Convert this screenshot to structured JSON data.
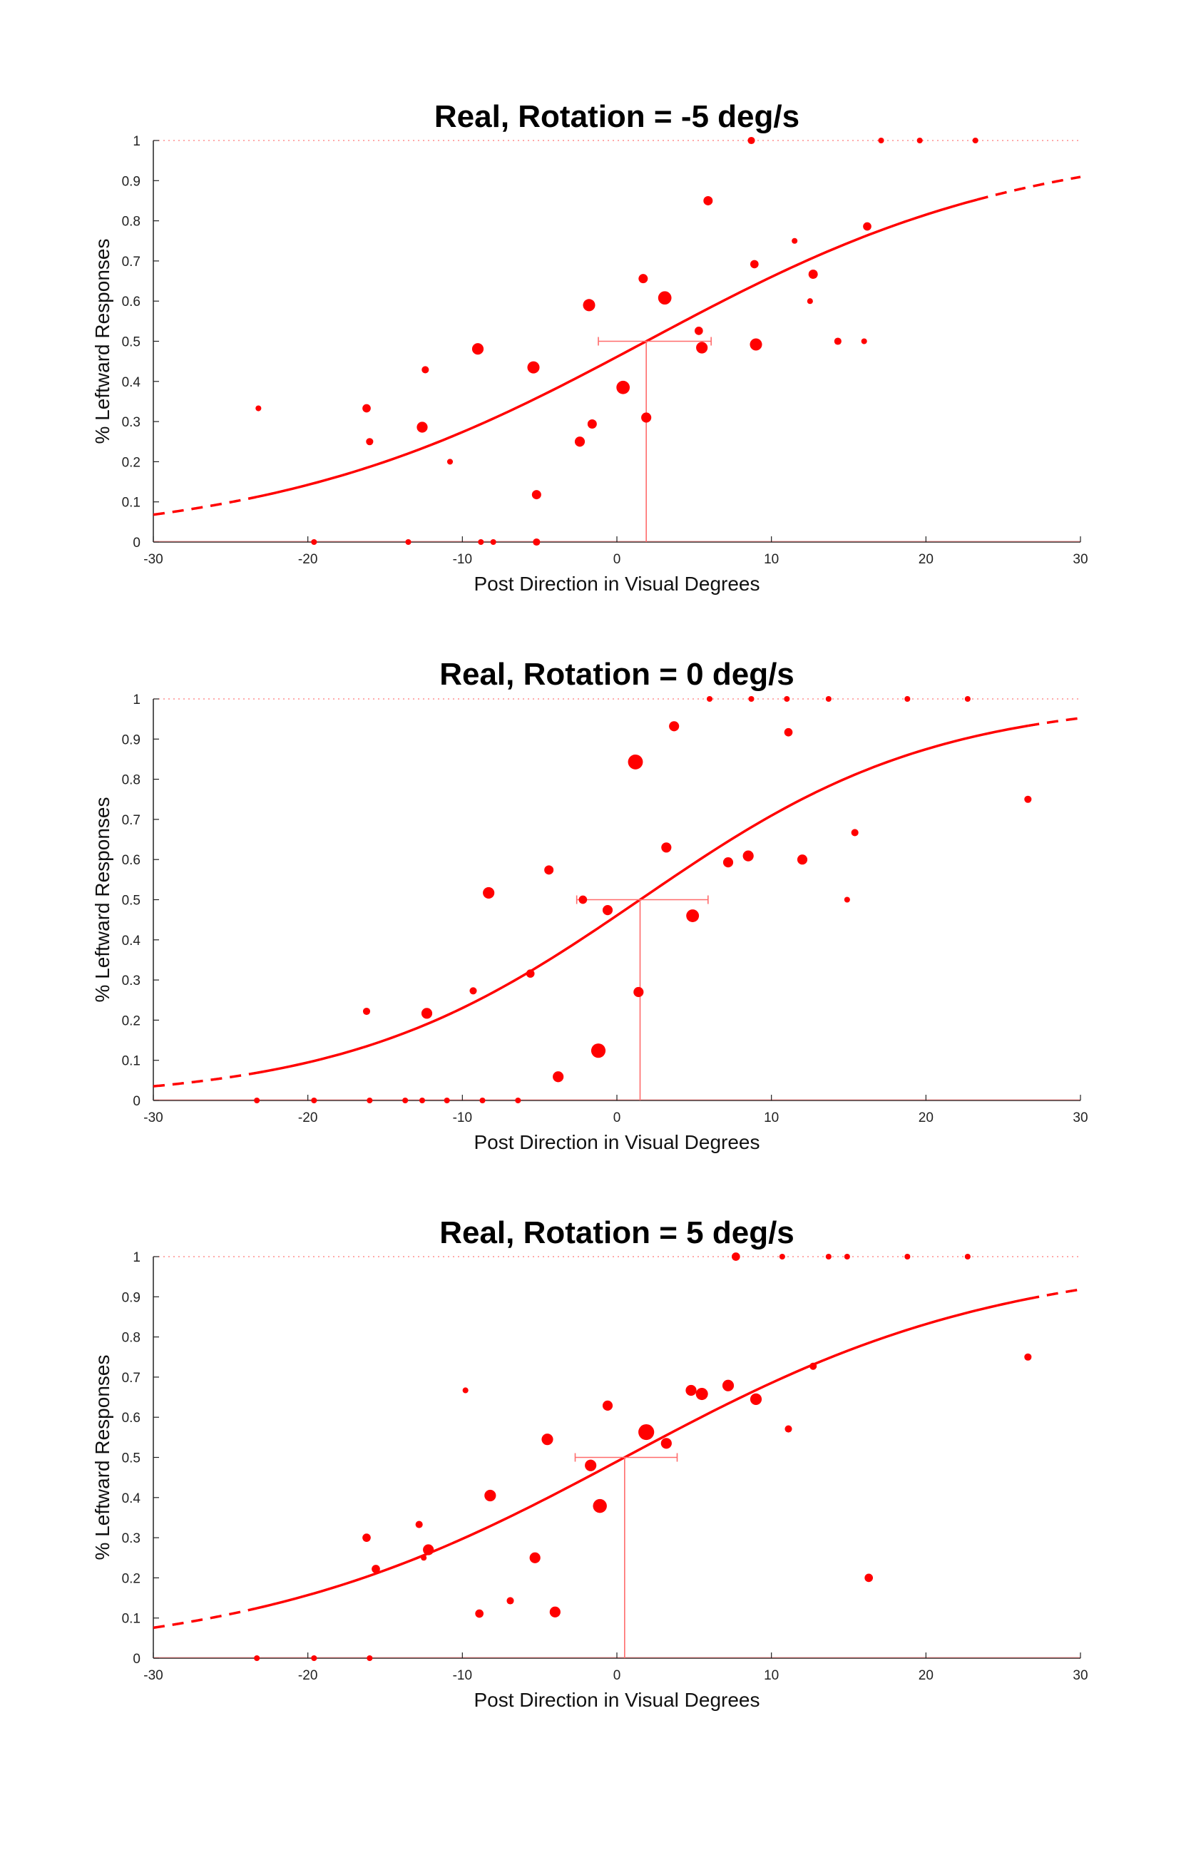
{
  "chart_data": [
    {
      "type": "scatter",
      "title": "Real, Rotation = -5 deg/s",
      "xlabel": "Post Direction in Visual Degrees",
      "ylabel": "% Leftward Responses",
      "xlim": [
        -30,
        30
      ],
      "ylim": [
        0,
        1
      ],
      "x_ticks": [
        -30,
        -20,
        -10,
        0,
        10,
        20,
        30
      ],
      "y_ticks": [
        0,
        0.1,
        0.2,
        0.3,
        0.4,
        0.5,
        0.6,
        0.7,
        0.8,
        0.9,
        1
      ],
      "x_tick_labels": [
        "-30",
        "-20",
        "-10",
        "0",
        "10",
        "20",
        "30"
      ],
      "y_tick_labels": [
        "0",
        "0.1",
        "0.2",
        "0.3",
        "0.4",
        "0.5",
        "0.6",
        "0.7",
        "0.8",
        "0.9",
        "1"
      ],
      "color": "#ff0000",
      "fit": {
        "pse": 1.9,
        "slope": 0.082,
        "solid_range": [
          -23.3,
          23.3
        ],
        "pse_ci": [
          -1.2,
          6.1
        ]
      },
      "points": [
        {
          "x": -23.2,
          "y": 0.333,
          "n": 1
        },
        {
          "x": -19.6,
          "y": 0,
          "n": 1
        },
        {
          "x": -16.2,
          "y": 0.333,
          "n": 3
        },
        {
          "x": -16.0,
          "y": 0.25,
          "n": 2
        },
        {
          "x": -13.5,
          "y": 0,
          "n": 1
        },
        {
          "x": -12.6,
          "y": 0.286,
          "n": 6
        },
        {
          "x": -12.4,
          "y": 0.429,
          "n": 2
        },
        {
          "x": -10.8,
          "y": 0.2,
          "n": 1
        },
        {
          "x": -9.0,
          "y": 0.481,
          "n": 7
        },
        {
          "x": -8.8,
          "y": 0,
          "n": 1
        },
        {
          "x": -8.0,
          "y": 0,
          "n": 1
        },
        {
          "x": -5.4,
          "y": 0.435,
          "n": 8
        },
        {
          "x": -5.2,
          "y": 0.118,
          "n": 4
        },
        {
          "x": -5.2,
          "y": 0,
          "n": 2
        },
        {
          "x": -2.4,
          "y": 0.25,
          "n": 5
        },
        {
          "x": -1.8,
          "y": 0.59,
          "n": 8
        },
        {
          "x": -1.6,
          "y": 0.294,
          "n": 4
        },
        {
          "x": 0.4,
          "y": 0.385,
          "n": 10
        },
        {
          "x": 1.7,
          "y": 0.656,
          "n": 4
        },
        {
          "x": 1.9,
          "y": 0.31,
          "n": 5
        },
        {
          "x": 3.1,
          "y": 0.608,
          "n": 10
        },
        {
          "x": 5.3,
          "y": 0.526,
          "n": 3
        },
        {
          "x": 5.5,
          "y": 0.484,
          "n": 7
        },
        {
          "x": 5.9,
          "y": 0.85,
          "n": 4
        },
        {
          "x": 8.7,
          "y": 1,
          "n": 2
        },
        {
          "x": 8.9,
          "y": 0.692,
          "n": 3
        },
        {
          "x": 9.0,
          "y": 0.492,
          "n": 8
        },
        {
          "x": 11.5,
          "y": 0.75,
          "n": 1
        },
        {
          "x": 12.5,
          "y": 0.6,
          "n": 1
        },
        {
          "x": 12.7,
          "y": 0.667,
          "n": 4
        },
        {
          "x": 14.3,
          "y": 0.5,
          "n": 2
        },
        {
          "x": 16.0,
          "y": 0.5,
          "n": 1
        },
        {
          "x": 16.2,
          "y": 0.786,
          "n": 3
        },
        {
          "x": 17.1,
          "y": 1,
          "n": 1
        },
        {
          "x": 19.6,
          "y": 1,
          "n": 1
        },
        {
          "x": 23.2,
          "y": 1,
          "n": 1
        }
      ]
    },
    {
      "type": "scatter",
      "title": "Real, Rotation = 0 deg/s",
      "xlabel": "Post Direction in Visual Degrees",
      "ylabel": "% Leftward Responses",
      "xlim": [
        -30,
        30
      ],
      "ylim": [
        0,
        1
      ],
      "x_ticks": [
        -30,
        -20,
        -10,
        0,
        10,
        20,
        30
      ],
      "y_ticks": [
        0,
        0.1,
        0.2,
        0.3,
        0.4,
        0.5,
        0.6,
        0.7,
        0.8,
        0.9,
        1
      ],
      "x_tick_labels": [
        "-30",
        "-20",
        "-10",
        "0",
        "10",
        "20",
        "30"
      ],
      "y_tick_labels": [
        "0",
        "0.1",
        "0.2",
        "0.3",
        "0.4",
        "0.5",
        "0.6",
        "0.7",
        "0.8",
        "0.9",
        "1"
      ],
      "color": "#ff0000",
      "fit": {
        "pse": 1.5,
        "slope": 0.105,
        "solid_range": [
          -23.3,
          26.6
        ],
        "pse_ci": [
          -2.6,
          5.9
        ]
      },
      "points": [
        {
          "x": -23.3,
          "y": 0,
          "n": 1
        },
        {
          "x": -19.6,
          "y": 0,
          "n": 1
        },
        {
          "x": -16.2,
          "y": 0.222,
          "n": 2
        },
        {
          "x": -16.0,
          "y": 0,
          "n": 1
        },
        {
          "x": -13.7,
          "y": 0,
          "n": 1
        },
        {
          "x": -12.6,
          "y": 0,
          "n": 1
        },
        {
          "x": -12.3,
          "y": 0.217,
          "n": 6
        },
        {
          "x": -11.0,
          "y": 0,
          "n": 1
        },
        {
          "x": -9.3,
          "y": 0.273,
          "n": 2
        },
        {
          "x": -8.7,
          "y": 0,
          "n": 1
        },
        {
          "x": -8.3,
          "y": 0.517,
          "n": 7
        },
        {
          "x": -6.4,
          "y": 0,
          "n": 1
        },
        {
          "x": -5.6,
          "y": 0.316,
          "n": 3
        },
        {
          "x": -4.4,
          "y": 0.574,
          "n": 4
        },
        {
          "x": -3.8,
          "y": 0.059,
          "n": 6
        },
        {
          "x": -2.2,
          "y": 0.5,
          "n": 3
        },
        {
          "x": -1.2,
          "y": 0.124,
          "n": 12
        },
        {
          "x": -0.6,
          "y": 0.474,
          "n": 5
        },
        {
          "x": 1.2,
          "y": 0.843,
          "n": 13
        },
        {
          "x": 1.4,
          "y": 0.27,
          "n": 5
        },
        {
          "x": 3.2,
          "y": 0.63,
          "n": 5
        },
        {
          "x": 3.7,
          "y": 0.932,
          "n": 5
        },
        {
          "x": 4.9,
          "y": 0.46,
          "n": 9
        },
        {
          "x": 6.0,
          "y": 1,
          "n": 1
        },
        {
          "x": 7.2,
          "y": 0.593,
          "n": 5
        },
        {
          "x": 8.5,
          "y": 0.609,
          "n": 6
        },
        {
          "x": 8.7,
          "y": 1,
          "n": 1
        },
        {
          "x": 11.0,
          "y": 1,
          "n": 1
        },
        {
          "x": 11.1,
          "y": 0.917,
          "n": 3
        },
        {
          "x": 12.0,
          "y": 0.6,
          "n": 5
        },
        {
          "x": 13.7,
          "y": 1,
          "n": 1
        },
        {
          "x": 14.9,
          "y": 0.5,
          "n": 1
        },
        {
          "x": 15.4,
          "y": 0.667,
          "n": 2
        },
        {
          "x": 18.8,
          "y": 1,
          "n": 1
        },
        {
          "x": 22.7,
          "y": 1,
          "n": 1
        },
        {
          "x": 26.6,
          "y": 0.75,
          "n": 2
        }
      ]
    },
    {
      "type": "scatter",
      "title": "Real, Rotation = 5 deg/s",
      "xlabel": "Post Direction in Visual Degrees",
      "ylabel": "% Leftward Responses",
      "xlim": [
        -30,
        30
      ],
      "ylim": [
        0,
        1
      ],
      "x_ticks": [
        -30,
        -20,
        -10,
        0,
        10,
        20,
        30
      ],
      "y_ticks": [
        0,
        0.1,
        0.2,
        0.3,
        0.4,
        0.5,
        0.6,
        0.7,
        0.8,
        0.9,
        1
      ],
      "x_tick_labels": [
        "-30",
        "-20",
        "-10",
        "0",
        "10",
        "20",
        "30"
      ],
      "y_tick_labels": [
        "0",
        "0.1",
        "0.2",
        "0.3",
        "0.4",
        "0.5",
        "0.6",
        "0.7",
        "0.8",
        "0.9",
        "1"
      ],
      "color": "#ff0000",
      "fit": {
        "pse": 0.5,
        "slope": 0.082,
        "solid_range": [
          -23.3,
          26.6
        ],
        "pse_ci": [
          -2.7,
          3.9
        ]
      },
      "points": [
        {
          "x": -23.3,
          "y": 0,
          "n": 1
        },
        {
          "x": -19.6,
          "y": 0,
          "n": 1
        },
        {
          "x": -16.2,
          "y": 0.3,
          "n": 3
        },
        {
          "x": -16.0,
          "y": 0,
          "n": 1
        },
        {
          "x": -15.6,
          "y": 0.222,
          "n": 3
        },
        {
          "x": -12.8,
          "y": 0.333,
          "n": 2
        },
        {
          "x": -12.5,
          "y": 0.25,
          "n": 1
        },
        {
          "x": -12.2,
          "y": 0.27,
          "n": 6
        },
        {
          "x": -9.8,
          "y": 0.667,
          "n": 1
        },
        {
          "x": -8.9,
          "y": 0.111,
          "n": 3
        },
        {
          "x": -8.2,
          "y": 0.405,
          "n": 7
        },
        {
          "x": -6.9,
          "y": 0.143,
          "n": 2
        },
        {
          "x": -5.3,
          "y": 0.25,
          "n": 6
        },
        {
          "x": -4.5,
          "y": 0.545,
          "n": 7
        },
        {
          "x": -4.0,
          "y": 0.115,
          "n": 6
        },
        {
          "x": -1.7,
          "y": 0.48,
          "n": 7
        },
        {
          "x": -1.1,
          "y": 0.379,
          "n": 11
        },
        {
          "x": -0.6,
          "y": 0.629,
          "n": 5
        },
        {
          "x": 1.9,
          "y": 0.563,
          "n": 15
        },
        {
          "x": 3.2,
          "y": 0.535,
          "n": 6
        },
        {
          "x": 4.8,
          "y": 0.667,
          "n": 6
        },
        {
          "x": 5.5,
          "y": 0.658,
          "n": 8
        },
        {
          "x": 7.2,
          "y": 0.679,
          "n": 7
        },
        {
          "x": 7.7,
          "y": 1,
          "n": 3
        },
        {
          "x": 9.0,
          "y": 0.645,
          "n": 7
        },
        {
          "x": 10.7,
          "y": 1,
          "n": 1
        },
        {
          "x": 11.1,
          "y": 0.571,
          "n": 2
        },
        {
          "x": 12.7,
          "y": 0.727,
          "n": 2
        },
        {
          "x": 13.7,
          "y": 1,
          "n": 1
        },
        {
          "x": 14.9,
          "y": 1,
          "n": 1
        },
        {
          "x": 16.3,
          "y": 0.2,
          "n": 3
        },
        {
          "x": 18.8,
          "y": 1,
          "n": 1
        },
        {
          "x": 22.7,
          "y": 1,
          "n": 1
        },
        {
          "x": 26.6,
          "y": 0.75,
          "n": 2
        }
      ]
    }
  ]
}
